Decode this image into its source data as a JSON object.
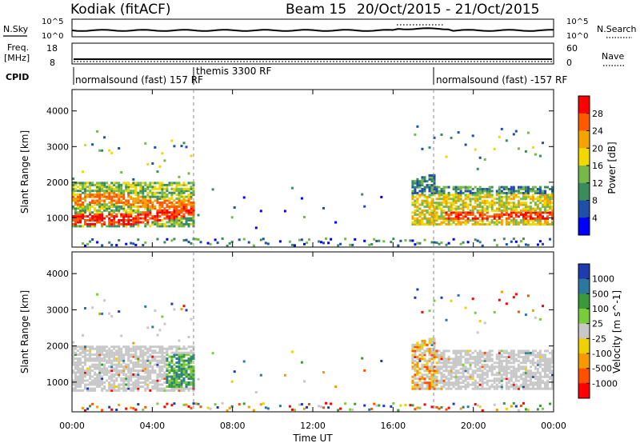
{
  "header": {
    "radar": "Kodiak (fitACF)",
    "beam": "Beam 15",
    "date_range": "20/Oct/2015 - 21/Oct/2015"
  },
  "sky_panel": {
    "left_label": "N.Sky",
    "right_label": "N.Search",
    "ticks_left": [
      "10^5",
      "10^0"
    ],
    "ticks_right": [
      "10^5",
      "10^0"
    ]
  },
  "freq_panel": {
    "left_label_1": "Freq.",
    "left_label_2": "[MHz]",
    "right_label": "Nave",
    "ticks_left": [
      "18",
      "8"
    ],
    "ticks_right": [
      "60",
      "0"
    ]
  },
  "cpid": {
    "label": "CPID",
    "segments": [
      {
        "text": "normalsound (fast) 157 RF",
        "start_hour": 0
      },
      {
        "text": "themis 3300 RF",
        "start_hour": 6
      },
      {
        "text": "normalsound (fast) -157 RF",
        "start_hour": 18
      }
    ]
  },
  "power_panel": {
    "ylabel": "Slant Range [km]",
    "yticks": [
      "1000",
      "2000",
      "3000",
      "4000"
    ],
    "colorbar_label": "Power [dB]",
    "colorbar_ticks": [
      "4",
      "8",
      "12",
      "16",
      "20",
      "24",
      "28"
    ],
    "colors": [
      "#0000ff",
      "#1f4fa8",
      "#3a8c5a",
      "#76b84a",
      "#f0d800",
      "#f2a400",
      "#ff5a00",
      "#ff0000"
    ]
  },
  "velocity_panel": {
    "ylabel": "Slant Range [km]",
    "yticks": [
      "1000",
      "2000",
      "3000",
      "4000"
    ],
    "colorbar_label": "Velocity [m s^-1]",
    "colorbar_ticks": [
      "1000",
      "500",
      "100",
      "25",
      "-25",
      "-100",
      "-500",
      "-1000"
    ],
    "colors": [
      "#1e3cb0",
      "#2a78a0",
      "#3a9a3a",
      "#7acd3a",
      "#c8c8c8",
      "#f0d000",
      "#f59a00",
      "#ff5000",
      "#ff0000"
    ]
  },
  "xaxis": {
    "ticks": [
      "00:00",
      "04:00",
      "08:00",
      "12:00",
      "16:00",
      "20:00",
      "00:00"
    ],
    "label": "Time UT"
  },
  "chart_data": {
    "type": "heatmap",
    "x_range_hours": [
      0,
      24
    ],
    "y_range_km": [
      180,
      4600
    ],
    "cpid_boundaries_hours": [
      6,
      18
    ],
    "power_regions": [
      {
        "t0": 0.0,
        "t1": 6.0,
        "r_center": 1050,
        "r_width": 150,
        "level": "28+"
      },
      {
        "t0": 0.0,
        "t1": 6.0,
        "r_center": 1600,
        "r_width": 350,
        "level": "8-20"
      },
      {
        "t0": 17.0,
        "t1": 24.0,
        "r_center": 1100,
        "r_width": 120,
        "level": "24-28"
      },
      {
        "t0": 17.0,
        "t1": 24.0,
        "r_center": 1500,
        "r_width": 400,
        "level": "8-16"
      }
    ],
    "velocity_regions": [
      {
        "t0": 0.0,
        "t1": 6.0,
        "r_center": 1400,
        "r_width": 700,
        "level": "-25 to 25"
      },
      {
        "t0": 4.5,
        "t1": 6.0,
        "r_center": 1300,
        "r_width": 400,
        "level": "100 to 500"
      },
      {
        "t0": 17.0,
        "t1": 24.0,
        "r_center": 1250,
        "r_width": 500,
        "level": "-25 to 25"
      }
    ]
  }
}
